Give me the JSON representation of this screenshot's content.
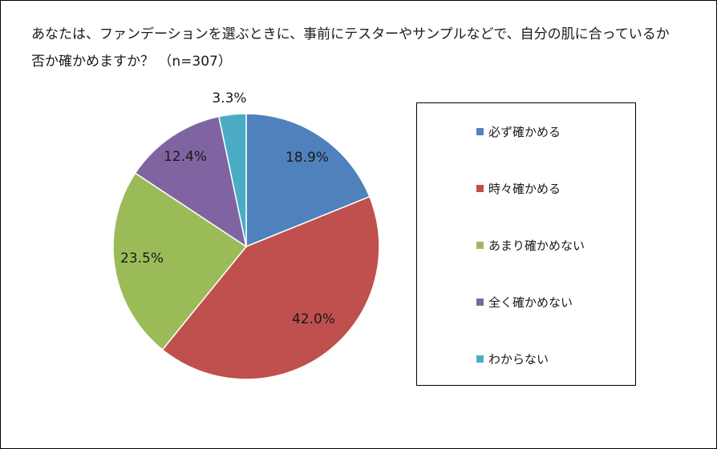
{
  "chart_data": {
    "type": "pie",
    "title_lines": [
      "あなたは、ファンデーションを選ぶときに、事前にテスターやサンプルなどで、自分の肌に合っているか",
      "否か確かめますか？ （n=307）"
    ],
    "slices": [
      {
        "label": "必ず確かめる",
        "value": 18.9,
        "display": "18.9%",
        "color": "#4F81BD"
      },
      {
        "label": "時々確かめる",
        "value": 42.0,
        "display": "42.0%",
        "color": "#C0504D"
      },
      {
        "label": "あまり確かめない",
        "value": 23.5,
        "display": "23.5%",
        "color": "#9BBB59"
      },
      {
        "label": "全く確かめない",
        "value": 12.4,
        "display": "12.4%",
        "color": "#8064A2"
      },
      {
        "label": "わからない",
        "value": 3.3,
        "display": "3.3%",
        "color": "#4BACC6"
      }
    ],
    "legend_position": "right"
  }
}
